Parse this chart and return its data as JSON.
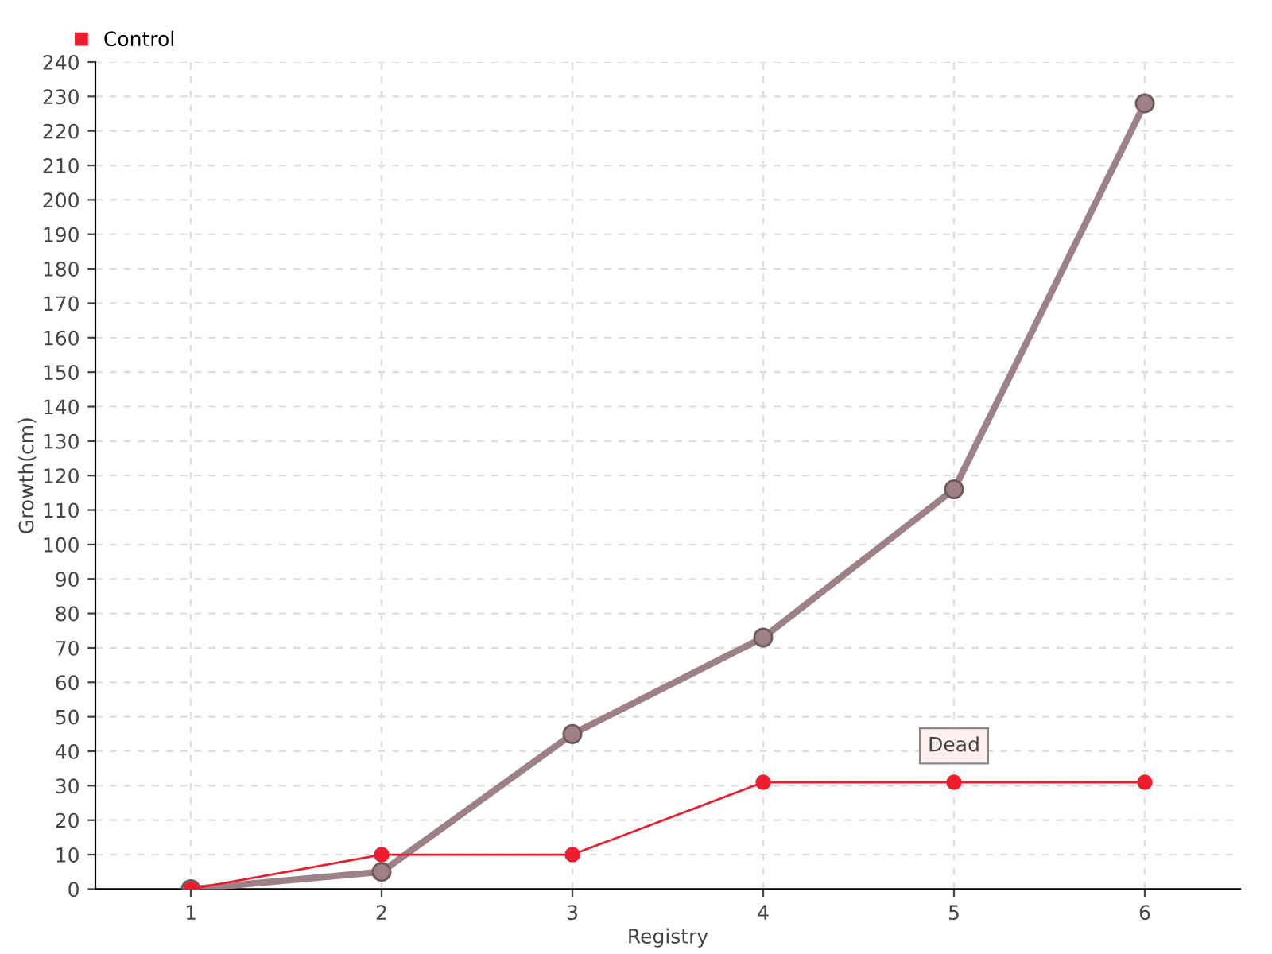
{
  "chart_data": {
    "type": "line",
    "xlabel": "Registry",
    "ylabel": "Growth(cm)",
    "x": [
      1,
      2,
      3,
      4,
      5,
      6
    ],
    "xlim": [
      0.5,
      6.5
    ],
    "xticks": [
      1,
      2,
      3,
      4,
      5,
      6
    ],
    "ylim": [
      0,
      240
    ],
    "yticks": [
      0,
      10,
      20,
      30,
      40,
      50,
      60,
      70,
      80,
      90,
      100,
      110,
      120,
      130,
      140,
      150,
      160,
      170,
      180,
      190,
      200,
      210,
      220,
      230,
      240
    ],
    "series": [
      {
        "color": "#9e8186",
        "values": [
          0,
          5,
          45,
          73,
          116,
          228
        ]
      },
      {
        "name": "Control",
        "color": "#ee1c2e",
        "values": [
          0,
          10,
          10,
          31,
          31,
          31
        ]
      }
    ],
    "annotations": [
      {
        "text": "Dead",
        "x": 5,
        "y": 31
      }
    ],
    "grid": true,
    "legend": "top left",
    "marker": "circle",
    "line_style": "solid"
  }
}
